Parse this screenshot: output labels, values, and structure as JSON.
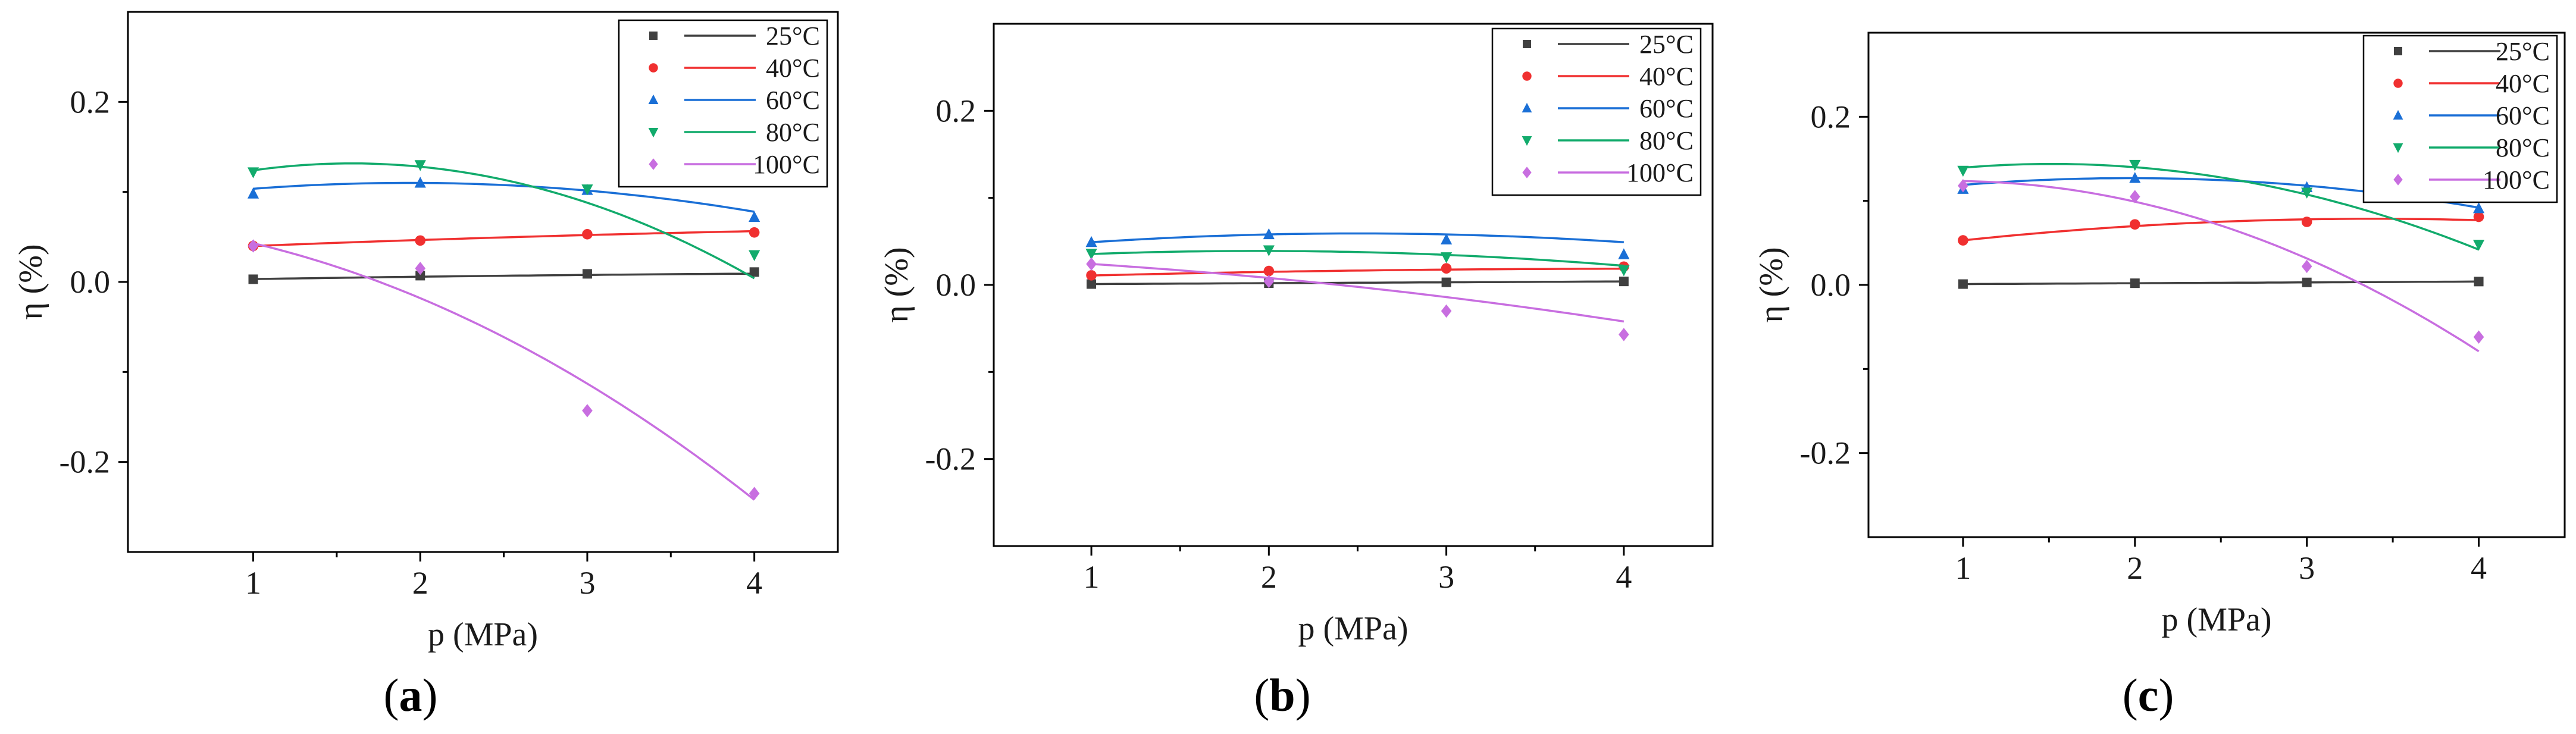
{
  "figure": {
    "panels": [
      "(a)",
      "(b)",
      "(c)"
    ]
  },
  "chart_data": [
    {
      "type": "scatter",
      "panel_label": "a",
      "xlabel": "p (MPa)",
      "ylabel": "η (%)",
      "xlim": [
        0.25,
        4.5
      ],
      "ylim": [
        -0.3,
        0.3
      ],
      "xticks": [
        "1",
        "2",
        "3",
        "4"
      ],
      "yticks": [
        {
          "value": 0.2,
          "label": "0.2"
        },
        {
          "value": 0.0,
          "label": "0.0"
        },
        {
          "value": -0.2,
          "label": "-0.2"
        }
      ],
      "x": [
        1,
        2,
        3,
        4
      ],
      "series": [
        {
          "name": "25°C",
          "color": "#404040",
          "marker": "square",
          "values": [
            0.003,
            0.007,
            0.009,
            0.011
          ],
          "fit": [
            -0.0003,
            0.0035,
            0.0
          ]
        },
        {
          "name": "40°C",
          "color": "#f03030",
          "marker": "circle",
          "values": [
            0.04,
            0.046,
            0.053,
            0.055
          ],
          "fit": [
            -0.0006,
            0.0085,
            0.032
          ]
        },
        {
          "name": "60°C",
          "color": "#1a6fd6",
          "marker": "triangle-up",
          "values": [
            0.098,
            0.11,
            0.102,
            0.072
          ],
          "fit": [
            -0.0075,
            0.029,
            0.082
          ]
        },
        {
          "name": "80°C",
          "color": "#12ab6c",
          "marker": "triangle-down",
          "values": [
            0.122,
            0.13,
            0.103,
            0.03
          ],
          "fit": [
            -0.022,
            0.07,
            0.076
          ]
        },
        {
          "name": "100°C",
          "color": "#c86ee0",
          "marker": "diamond",
          "values": [
            0.04,
            0.015,
            -0.143,
            -0.235
          ],
          "fit": [
            -0.017,
            -0.01,
            0.07
          ]
        }
      ]
    },
    {
      "type": "scatter",
      "panel_label": "b",
      "xlabel": "p (MPa)",
      "ylabel": "η (%)",
      "xlim": [
        0.45,
        4.5
      ],
      "ylim": [
        -0.3,
        0.3
      ],
      "xticks": [
        "1",
        "2",
        "3",
        "4"
      ],
      "yticks": [
        {
          "value": 0.2,
          "label": "0.2"
        },
        {
          "value": 0.0,
          "label": "0.0"
        },
        {
          "value": -0.2,
          "label": "-0.2"
        }
      ],
      "x": [
        1,
        2,
        3,
        4
      ],
      "series": [
        {
          "name": "25°C",
          "color": "#404040",
          "marker": "square",
          "values": [
            0.001,
            0.002,
            0.003,
            0.004
          ],
          "fit": [
            0.0,
            0.001,
            0.0
          ]
        },
        {
          "name": "40°C",
          "color": "#f03030",
          "marker": "circle",
          "values": [
            0.011,
            0.016,
            0.019,
            0.021
          ],
          "fit": [
            -0.0008,
            0.0066,
            0.005
          ]
        },
        {
          "name": "60°C",
          "color": "#1a6fd6",
          "marker": "triangle-up",
          "values": [
            0.049,
            0.058,
            0.052,
            0.035
          ],
          "fit": [
            -0.0045,
            0.0225,
            0.031
          ]
        },
        {
          "name": "80°C",
          "color": "#12ab6c",
          "marker": "triangle-down",
          "values": [
            0.036,
            0.04,
            0.032,
            0.017
          ],
          "fit": [
            -0.004,
            0.0155,
            0.024
          ]
        },
        {
          "name": "100°C",
          "color": "#c86ee0",
          "marker": "diamond",
          "values": [
            0.024,
            0.004,
            -0.03,
            -0.057
          ],
          "fit": [
            -0.003,
            -0.007,
            0.034
          ]
        }
      ]
    },
    {
      "type": "scatter",
      "panel_label": "c",
      "xlabel": "p (MPa)",
      "ylabel": "η (%)",
      "xlim": [
        0.45,
        4.5
      ],
      "ylim": [
        -0.3,
        0.3
      ],
      "xticks": [
        "1",
        "2",
        "3",
        "4"
      ],
      "yticks": [
        {
          "value": 0.2,
          "label": "0.2"
        },
        {
          "value": 0.0,
          "label": "0.0"
        },
        {
          "value": -0.2,
          "label": "-0.2"
        }
      ],
      "x": [
        1,
        2,
        3,
        4
      ],
      "series": [
        {
          "name": "25°C",
          "color": "#404040",
          "marker": "square",
          "values": [
            0.001,
            0.002,
            0.003,
            0.004
          ],
          "fit": [
            0.0,
            0.001,
            0.0
          ]
        },
        {
          "name": "40°C",
          "color": "#f03030",
          "marker": "circle",
          "values": [
            0.053,
            0.072,
            0.075,
            0.081
          ],
          "fit": [
            -0.0045,
            0.0305,
            0.027
          ]
        },
        {
          "name": "60°C",
          "color": "#1a6fd6",
          "marker": "triangle-up",
          "values": [
            0.114,
            0.127,
            0.116,
            0.091
          ],
          "fit": [
            -0.0085,
            0.0335,
            0.094
          ]
        },
        {
          "name": "80°C",
          "color": "#12ab6c",
          "marker": "triangle-down",
          "values": [
            0.136,
            0.143,
            0.11,
            0.048
          ],
          "fit": [
            -0.0165,
            0.05,
            0.106
          ]
        },
        {
          "name": "100°C",
          "color": "#c86ee0",
          "marker": "diamond",
          "values": [
            0.118,
            0.105,
            0.022,
            -0.062
          ],
          "fit": [
            -0.0215,
            0.04,
            0.105
          ]
        }
      ]
    }
  ]
}
